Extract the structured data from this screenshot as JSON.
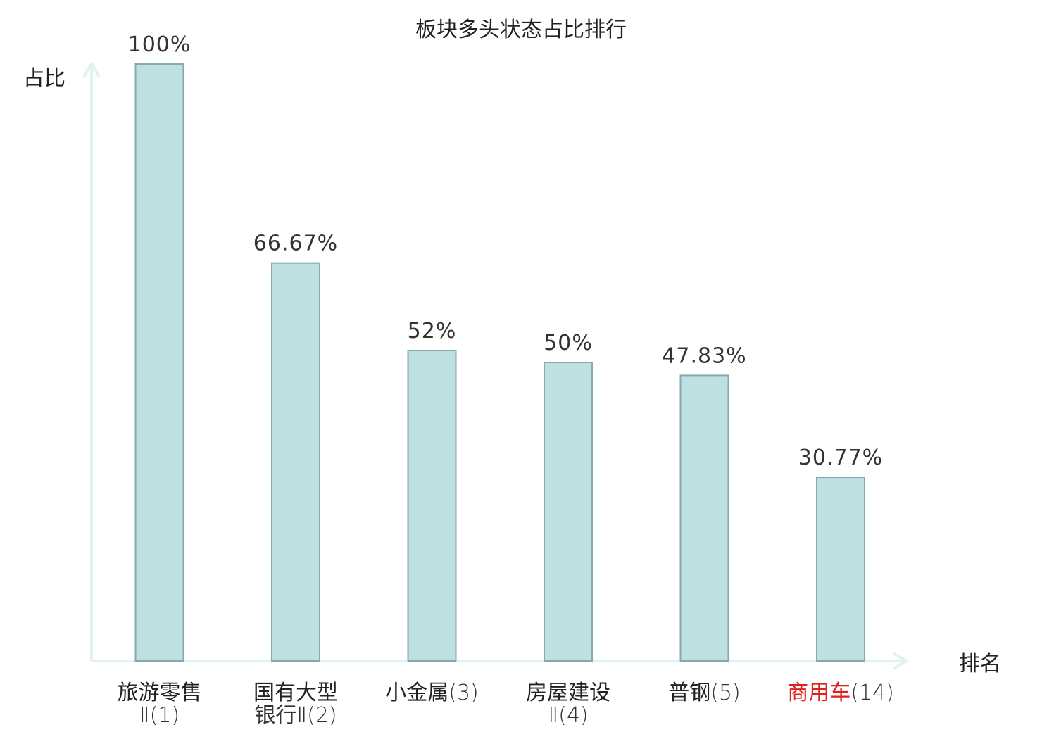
{
  "chart_data": {
    "type": "bar",
    "title": "板块多头状态占比排行",
    "ylabel": "占比",
    "xlabel": "排名",
    "ylim": [
      0,
      100
    ],
    "grid": false,
    "categories": [
      {
        "name_lines": [
          "旅游零售"
        ],
        "rank_text": "Ⅱ(1)",
        "highlight": false
      },
      {
        "name_lines": [
          "国有大型"
        ],
        "rank_text": "银行Ⅱ(2)",
        "highlight": false
      },
      {
        "name_lines": [
          "小金属"
        ],
        "rank_text": "(3)",
        "highlight": false,
        "inline": true
      },
      {
        "name_lines": [
          "房屋建设"
        ],
        "rank_text": "Ⅱ(4)",
        "highlight": false
      },
      {
        "name_lines": [
          "普钢"
        ],
        "rank_text": "(5)",
        "highlight": false,
        "inline": true
      },
      {
        "name_lines": [
          "商用车"
        ],
        "rank_text": "(14)",
        "highlight": true,
        "inline": true
      }
    ],
    "values": [
      100,
      66.67,
      52,
      50,
      47.83,
      30.77
    ],
    "value_labels": [
      "100%",
      "66.67%",
      "52%",
      "50%",
      "47.83%",
      "30.77%"
    ],
    "colors": {
      "bar_fill": "#bde0e3",
      "bar_stroke": "#86a9ae",
      "axis": "#e1f3f1",
      "highlight_text": "#e0201c"
    }
  }
}
